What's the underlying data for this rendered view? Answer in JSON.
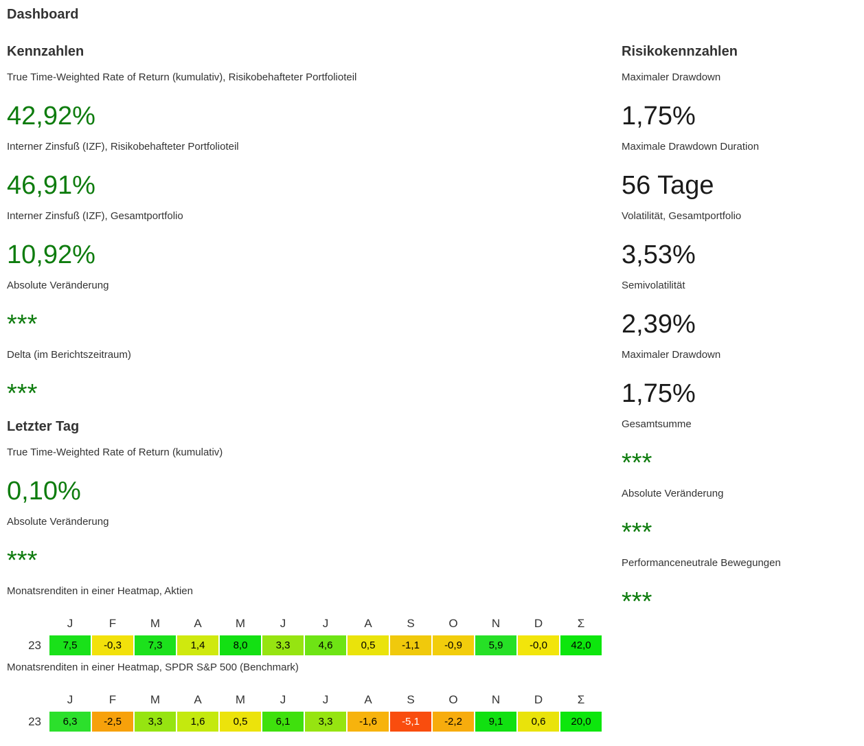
{
  "page": {
    "title": "Dashboard"
  },
  "colors": {
    "positive_value_green": "#0e7c0e",
    "neutral_value_black": "#1a1a1a",
    "label_text": "#333333"
  },
  "left_column": {
    "sections": [
      {
        "title": "Kennzahlen",
        "metrics": [
          {
            "label": "True Time-Weighted Rate of Return (kumulativ), Risikobehafteter Portfolioteil",
            "value": "42,92%",
            "color": "green"
          },
          {
            "label": "Interner Zinsfuß (IZF), Risikobehafteter Portfolioteil",
            "value": "46,91%",
            "color": "green"
          },
          {
            "label": "Interner Zinsfuß (IZF), Gesamtportfolio",
            "value": "10,92%",
            "color": "green"
          },
          {
            "label": "Absolute Veränderung",
            "value": "***",
            "color": "green"
          },
          {
            "label": "Delta (im Berichtszeitraum)",
            "value": "***",
            "color": "green"
          }
        ]
      },
      {
        "title": "Letzter Tag",
        "metrics": [
          {
            "label": "True Time-Weighted Rate of Return (kumulativ)",
            "value": "0,10%",
            "color": "green"
          },
          {
            "label": "Absolute Veränderung",
            "value": "***",
            "color": "green"
          }
        ]
      }
    ],
    "heatmaps": [
      {
        "label": "Monatsrenditen in einer Heatmap, Aktien",
        "columns": [
          "J",
          "F",
          "M",
          "A",
          "M",
          "J",
          "J",
          "A",
          "S",
          "O",
          "N",
          "D",
          "Σ"
        ],
        "rows": [
          {
            "label": "23",
            "cells": [
              {
                "v": "7,5",
                "bg": "#19e119"
              },
              {
                "v": "-0,3",
                "bg": "#f2e10b"
              },
              {
                "v": "7,3",
                "bg": "#1ce11c"
              },
              {
                "v": "1,4",
                "bg": "#cfe90e"
              },
              {
                "v": "8,0",
                "bg": "#13e013"
              },
              {
                "v": "3,3",
                "bg": "#96e411"
              },
              {
                "v": "4,6",
                "bg": "#6ee414"
              },
              {
                "v": "0,5",
                "bg": "#eae30b"
              },
              {
                "v": "-1,1",
                "bg": "#f0c90c"
              },
              {
                "v": "-0,9",
                "bg": "#f2cd0c"
              },
              {
                "v": "5,9",
                "bg": "#26e026"
              },
              {
                "v": "-0,0",
                "bg": "#f2e50b"
              },
              {
                "v": "42,0",
                "bg": "#0de60d"
              }
            ]
          }
        ]
      },
      {
        "label": "Monatsrenditen in einer Heatmap, SPDR S&P 500 (Benchmark)",
        "columns": [
          "J",
          "F",
          "M",
          "A",
          "M",
          "J",
          "J",
          "A",
          "S",
          "O",
          "N",
          "D",
          "Σ"
        ],
        "rows": [
          {
            "label": "23",
            "cells": [
              {
                "v": "6,3",
                "bg": "#2ce02c"
              },
              {
                "v": "-2,5",
                "bg": "#f7a10b"
              },
              {
                "v": "3,3",
                "bg": "#96e411"
              },
              {
                "v": "1,6",
                "bg": "#c4e90e"
              },
              {
                "v": "0,5",
                "bg": "#ece30b"
              },
              {
                "v": "6,1",
                "bg": "#3fe00d"
              },
              {
                "v": "3,3",
                "bg": "#96e411"
              },
              {
                "v": "-1,6",
                "bg": "#f7b30d"
              },
              {
                "v": "-5,1",
                "bg": "#f94d0e",
                "fg": "#ffffff"
              },
              {
                "v": "-2,2",
                "bg": "#f7ac0d"
              },
              {
                "v": "9,1",
                "bg": "#11e011"
              },
              {
                "v": "0,6",
                "bg": "#e9e30b"
              },
              {
                "v": "20,0",
                "bg": "#0de60d"
              }
            ]
          }
        ]
      }
    ]
  },
  "right_column": {
    "title": "Risikokennzahlen",
    "metrics": [
      {
        "label": "Maximaler Drawdown",
        "value": "1,75%",
        "color": "black"
      },
      {
        "label": "Maximale Drawdown Duration",
        "value": "56 Tage",
        "color": "black"
      },
      {
        "label": "Volatilität, Gesamtportfolio",
        "value": "3,53%",
        "color": "black"
      },
      {
        "label": "Semivolatilität",
        "value": "2,39%",
        "color": "black"
      },
      {
        "label": "Maximaler Drawdown",
        "value": "1,75%",
        "color": "black"
      },
      {
        "label": "Gesamtsumme",
        "value": "***",
        "color": "green"
      },
      {
        "label": "Absolute Veränderung",
        "value": "***",
        "color": "green"
      },
      {
        "label": "Performanceneutrale Bewegungen",
        "value": "***",
        "color": "green"
      }
    ]
  },
  "chart_data": [
    {
      "type": "heatmap",
      "title": "Monatsrenditen in einer Heatmap, Aktien",
      "x": [
        "J",
        "F",
        "M",
        "A",
        "M",
        "J",
        "J",
        "A",
        "S",
        "O",
        "N",
        "D",
        "Σ"
      ],
      "y": [
        "23"
      ],
      "values": [
        [
          7.5,
          -0.3,
          7.3,
          1.4,
          8.0,
          3.3,
          4.6,
          0.5,
          -1.1,
          -0.9,
          5.9,
          -0.0,
          42.0
        ]
      ],
      "legend": "red (negative) to yellow (zero) to green (positive) monthly returns in %"
    },
    {
      "type": "heatmap",
      "title": "Monatsrenditen in einer Heatmap, SPDR S&P 500 (Benchmark)",
      "x": [
        "J",
        "F",
        "M",
        "A",
        "M",
        "J",
        "J",
        "A",
        "S",
        "O",
        "N",
        "D",
        "Σ"
      ],
      "y": [
        "23"
      ],
      "values": [
        [
          6.3,
          -2.5,
          3.3,
          1.6,
          0.5,
          6.1,
          3.3,
          -1.6,
          -5.1,
          -2.2,
          9.1,
          0.6,
          20.0
        ]
      ],
      "legend": "red (negative) to yellow (zero) to green (positive) monthly returns in %"
    }
  ]
}
